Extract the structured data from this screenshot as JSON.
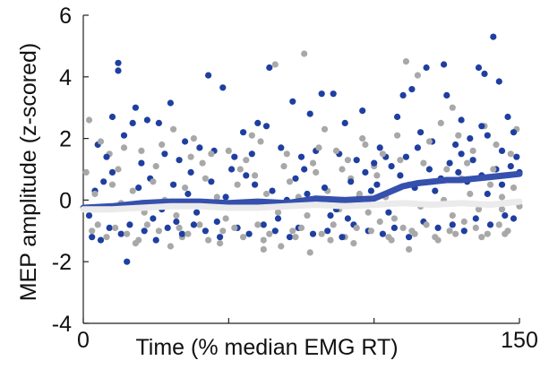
{
  "chart_data": {
    "type": "scatter",
    "title": "",
    "xlabel": "Time (% median EMG RT)",
    "ylabel": "MEP amplitude (z-scored)",
    "xlim": [
      0,
      150
    ],
    "ylim": [
      -4,
      6
    ],
    "xticks": [
      0,
      50,
      100,
      150
    ],
    "xtick_labels": [
      "0",
      "",
      "",
      "150"
    ],
    "yticks": [
      -4,
      -2,
      0,
      2,
      4,
      6
    ],
    "ytick_labels": [
      "-4",
      "-2",
      "0",
      "2",
      "4",
      "6"
    ],
    "grid": false,
    "legend": false,
    "colors": {
      "series_a": "#1f3fa0",
      "series_b": "#a8a8a8",
      "trend_a": "#3550ad",
      "trend_b": "#ebebeb"
    },
    "series": [
      {
        "kind": "scatter",
        "color": "#1f3fa0",
        "points": [
          [
            12,
            4.45
          ],
          [
            12,
            4.2
          ],
          [
            48,
            3.65
          ],
          [
            43,
            4.05
          ],
          [
            30,
            3.15
          ],
          [
            17,
            2.5
          ],
          [
            10,
            2.7
          ],
          [
            14,
            2.1
          ],
          [
            18,
            3.0
          ],
          [
            22,
            2.6
          ],
          [
            26,
            2.5
          ],
          [
            35,
            1.9
          ],
          [
            40,
            1.7
          ],
          [
            55,
            2.2
          ],
          [
            60,
            2.5
          ],
          [
            63,
            2.4
          ],
          [
            64,
            4.3
          ],
          [
            72,
            3.2
          ],
          [
            78,
            2.8
          ],
          [
            82,
            3.45
          ],
          [
            86,
            3.45
          ],
          [
            90,
            2.5
          ],
          [
            96,
            2.9
          ],
          [
            102,
            1.7
          ],
          [
            108,
            2.7
          ],
          [
            110,
            3.4
          ],
          [
            113,
            3.6
          ],
          [
            118,
            4.3
          ],
          [
            124,
            4.4
          ],
          [
            125,
            3.4
          ],
          [
            130,
            2.6
          ],
          [
            136,
            4.3
          ],
          [
            138,
            4.1
          ],
          [
            141,
            5.3
          ],
          [
            143,
            3.85
          ],
          [
            146,
            2.7
          ],
          [
            148,
            2.2
          ],
          [
            149,
            1.4
          ],
          [
            5,
            1.8
          ],
          [
            8,
            1.4
          ],
          [
            20,
            1.2
          ],
          [
            28,
            1.5
          ],
          [
            33,
            1.3
          ],
          [
            45,
            1.6
          ],
          [
            52,
            1.4
          ],
          [
            58,
            1.5
          ],
          [
            68,
            1.7
          ],
          [
            75,
            1.4
          ],
          [
            80,
            1.6
          ],
          [
            88,
            1.5
          ],
          [
            94,
            1.3
          ],
          [
            100,
            1.2
          ],
          [
            104,
            1.4
          ],
          [
            115,
            1.7
          ],
          [
            120,
            1.9
          ],
          [
            128,
            1.8
          ],
          [
            133,
            2.0
          ],
          [
            139,
            2.1
          ],
          [
            144,
            1.6
          ],
          [
            15,
            -2.0
          ],
          [
            3,
            -1.2
          ],
          [
            6,
            -1.3
          ],
          [
            9,
            -0.9
          ],
          [
            13,
            -1.1
          ],
          [
            16,
            -0.8
          ],
          [
            21,
            -1.0
          ],
          [
            25,
            -1.3
          ],
          [
            29,
            -0.9
          ],
          [
            34,
            -1.1
          ],
          [
            38,
            -0.8
          ],
          [
            42,
            -1.0
          ],
          [
            47,
            -1.2
          ],
          [
            53,
            -0.9
          ],
          [
            57,
            -1.1
          ],
          [
            62,
            -0.8
          ],
          [
            66,
            -1.0
          ],
          [
            71,
            -1.2
          ],
          [
            74,
            -0.9
          ],
          [
            79,
            -1.1
          ],
          [
            84,
            -1.0
          ],
          [
            89,
            -1.2
          ],
          [
            93,
            -0.8
          ],
          [
            98,
            -1.0
          ],
          [
            103,
            -1.1
          ],
          [
            107,
            -0.9
          ],
          [
            112,
            -1.2
          ],
          [
            117,
            -0.7
          ],
          [
            122,
            -0.9
          ],
          [
            127,
            -0.8
          ],
          [
            131,
            -1.0
          ],
          [
            135,
            -0.6
          ],
          [
            140,
            -0.8
          ],
          [
            145,
            -0.5
          ],
          [
            148,
            -0.6
          ],
          [
            4,
            0.3
          ],
          [
            7,
            0.6
          ],
          [
            11,
            -0.2
          ],
          [
            19,
            0.4
          ],
          [
            23,
            0.7
          ],
          [
            27,
            -0.3
          ],
          [
            31,
            0.5
          ],
          [
            36,
            0.2
          ],
          [
            39,
            -0.4
          ],
          [
            44,
            0.6
          ],
          [
            49,
            0.1
          ],
          [
            54,
            -0.2
          ],
          [
            59,
            0.5
          ],
          [
            65,
            0.3
          ],
          [
            69,
            -0.1
          ],
          [
            73,
            0.7
          ],
          [
            77,
            0.2
          ],
          [
            83,
            0.4
          ],
          [
            87,
            -0.3
          ],
          [
            92,
            0.6
          ],
          [
            97,
            0.9
          ],
          [
            101,
            0.5
          ],
          [
            106,
            1.1
          ],
          [
            109,
            0.8
          ],
          [
            114,
            0.4
          ],
          [
            119,
            1.0
          ],
          [
            123,
            0.7
          ],
          [
            126,
            1.2
          ],
          [
            129,
            0.9
          ],
          [
            132,
            0.6
          ],
          [
            134,
            1.3
          ],
          [
            137,
            0.8
          ],
          [
            142,
            1.0
          ],
          [
            147,
            1.1
          ],
          [
            150,
            0.9
          ],
          [
            2,
            -0.5
          ],
          [
            24,
            -0.6
          ],
          [
            37,
            0.9
          ],
          [
            46,
            -0.7
          ],
          [
            56,
            0.8
          ],
          [
            67,
            -0.6
          ],
          [
            76,
            1.0
          ],
          [
            85,
            -0.5
          ],
          [
            95,
            0.1
          ],
          [
            105,
            -0.4
          ],
          [
            111,
            1.4
          ],
          [
            116,
            -0.2
          ],
          [
            121,
            0.3
          ],
          [
            139,
            0.2
          ],
          [
            144,
            0.5
          ],
          [
            10,
            0.9
          ],
          [
            32,
            -0.7
          ],
          [
            51,
            1.0
          ],
          [
            70,
            0.0
          ],
          [
            91,
            -0.6
          ],
          [
            99,
            0.3
          ],
          [
            116,
            2.2
          ],
          [
            130,
            1.5
          ],
          [
            137,
            2.4
          ]
        ]
      },
      {
        "kind": "scatter",
        "color": "#a8a8a8",
        "points": [
          [
            2,
            2.6
          ],
          [
            6,
            1.9
          ],
          [
            9,
            1.5
          ],
          [
            14,
            1.7
          ],
          [
            20,
            1.6
          ],
          [
            27,
            1.8
          ],
          [
            31,
            2.3
          ],
          [
            37,
            1.4
          ],
          [
            44,
            1.5
          ],
          [
            50,
            1.6
          ],
          [
            56,
            1.3
          ],
          [
            61,
            1.9
          ],
          [
            66,
            4.4
          ],
          [
            70,
            1.5
          ],
          [
            76,
            4.75
          ],
          [
            81,
            1.7
          ],
          [
            87,
            1.6
          ],
          [
            91,
            1.3
          ],
          [
            97,
            1.8
          ],
          [
            103,
            1.5
          ],
          [
            108,
            2.1
          ],
          [
            111,
            4.5
          ],
          [
            115,
            4.05
          ],
          [
            119,
            1.9
          ],
          [
            123,
            2.5
          ],
          [
            129,
            2.1
          ],
          [
            134,
            1.6
          ],
          [
            138,
            2.4
          ],
          [
            142,
            1.8
          ],
          [
            147,
            1.5
          ],
          [
            149,
            2.3
          ],
          [
            3,
            -1.0
          ],
          [
            5,
            -0.8
          ],
          [
            8,
            -1.2
          ],
          [
            11,
            -0.9
          ],
          [
            15,
            -1.1
          ],
          [
            18,
            -1.4
          ],
          [
            22,
            -0.8
          ],
          [
            26,
            -1.0
          ],
          [
            30,
            -1.5
          ],
          [
            33,
            -0.9
          ],
          [
            36,
            -1.1
          ],
          [
            40,
            -0.8
          ],
          [
            43,
            -1.3
          ],
          [
            48,
            -1.0
          ],
          [
            52,
            -0.9
          ],
          [
            55,
            -1.2
          ],
          [
            60,
            -0.8
          ],
          [
            64,
            -1.1
          ],
          [
            68,
            -1.5
          ],
          [
            72,
            -1.0
          ],
          [
            75,
            -0.9
          ],
          [
            78,
            -1.7
          ],
          [
            82,
            -1.1
          ],
          [
            86,
            -0.8
          ],
          [
            90,
            -1.2
          ],
          [
            94,
            -0.9
          ],
          [
            99,
            -1.0
          ],
          [
            102,
            -0.7
          ],
          [
            106,
            -1.3
          ],
          [
            110,
            -0.9
          ],
          [
            113,
            -1.0
          ],
          [
            118,
            -0.8
          ],
          [
            121,
            -1.2
          ],
          [
            126,
            -1.0
          ],
          [
            131,
            -0.7
          ],
          [
            135,
            -0.9
          ],
          [
            139,
            -1.1
          ],
          [
            143,
            -0.8
          ],
          [
            146,
            -1.0
          ],
          [
            4,
            0.2
          ],
          [
            7,
            -0.3
          ],
          [
            10,
            0.5
          ],
          [
            13,
            -0.1
          ],
          [
            17,
            0.3
          ],
          [
            21,
            -0.4
          ],
          [
            24,
            0.6
          ],
          [
            28,
            0.0
          ],
          [
            32,
            -0.5
          ],
          [
            35,
            0.4
          ],
          [
            39,
            -0.2
          ],
          [
            42,
            0.7
          ],
          [
            46,
            0.1
          ],
          [
            49,
            -0.6
          ],
          [
            53,
            0.5
          ],
          [
            57,
            -0.1
          ],
          [
            59,
            0.8
          ],
          [
            63,
            0.2
          ],
          [
            67,
            -0.4
          ],
          [
            71,
            0.6
          ],
          [
            74,
            0.1
          ],
          [
            77,
            -0.5
          ],
          [
            80,
            0.9
          ],
          [
            84,
            0.3
          ],
          [
            88,
            -0.3
          ],
          [
            92,
            0.7
          ],
          [
            95,
            0.2
          ],
          [
            98,
            -0.4
          ],
          [
            101,
            0.8
          ],
          [
            104,
            0.1
          ],
          [
            107,
            -0.6
          ],
          [
            112,
            0.5
          ],
          [
            116,
            -0.2
          ],
          [
            120,
            0.6
          ],
          [
            124,
            0.0
          ],
          [
            127,
            -0.5
          ],
          [
            130,
            0.7
          ],
          [
            133,
            0.2
          ],
          [
            136,
            -0.3
          ],
          [
            140,
            0.5
          ],
          [
            144,
            0.1
          ],
          [
            148,
            0.4
          ],
          [
            1,
            0.9
          ],
          [
            12,
            1.0
          ],
          [
            19,
            -1.3
          ],
          [
            25,
            1.1
          ],
          [
            34,
            -1.2
          ],
          [
            41,
            1.2
          ],
          [
            47,
            -1.4
          ],
          [
            54,
            1.0
          ],
          [
            62,
            -1.3
          ],
          [
            69,
            1.1
          ],
          [
            73,
            -1.2
          ],
          [
            79,
            1.2
          ],
          [
            85,
            -1.3
          ],
          [
            89,
            1.0
          ],
          [
            93,
            -1.4
          ],
          [
            100,
            1.1
          ],
          [
            105,
            -1.2
          ],
          [
            109,
            1.3
          ],
          [
            114,
            -1.1
          ],
          [
            117,
            1.2
          ],
          [
            122,
            -1.3
          ],
          [
            125,
            1.0
          ],
          [
            128,
            -1.1
          ],
          [
            132,
            1.2
          ],
          [
            137,
            -1.2
          ],
          [
            141,
            1.0
          ],
          [
            145,
            -1.1
          ],
          [
            150,
            -0.2
          ],
          [
            38,
            2.0
          ],
          [
            58,
            2.1
          ],
          [
            83,
            2.3
          ],
          [
            96,
            2.0
          ],
          [
            127,
            3.0
          ],
          [
            62,
            -1.6
          ],
          [
            112,
            -1.6
          ],
          [
            144,
            -0.3
          ]
        ]
      }
    ],
    "trends": [
      {
        "kind": "line",
        "color": "#3550ad",
        "x": [
          0,
          10,
          20,
          30,
          40,
          50,
          60,
          70,
          80,
          90,
          100,
          105,
          110,
          115,
          120,
          125,
          130,
          135,
          140,
          145,
          150
        ],
        "y": [
          -0.25,
          -0.2,
          -0.1,
          -0.05,
          -0.05,
          -0.1,
          -0.05,
          -0.1,
          0.05,
          0.0,
          0.05,
          0.25,
          0.45,
          0.55,
          0.6,
          0.65,
          0.65,
          0.7,
          0.75,
          0.8,
          0.85
        ]
      },
      {
        "kind": "line",
        "color": "#ebebeb",
        "x": [
          0,
          10,
          20,
          30,
          40,
          50,
          60,
          70,
          80,
          90,
          100,
          110,
          120,
          130,
          140,
          150
        ],
        "y": [
          -0.3,
          -0.3,
          -0.25,
          -0.2,
          -0.2,
          -0.25,
          -0.25,
          -0.2,
          -0.15,
          -0.2,
          -0.15,
          -0.1,
          -0.15,
          -0.1,
          -0.15,
          -0.05
        ]
      }
    ]
  }
}
